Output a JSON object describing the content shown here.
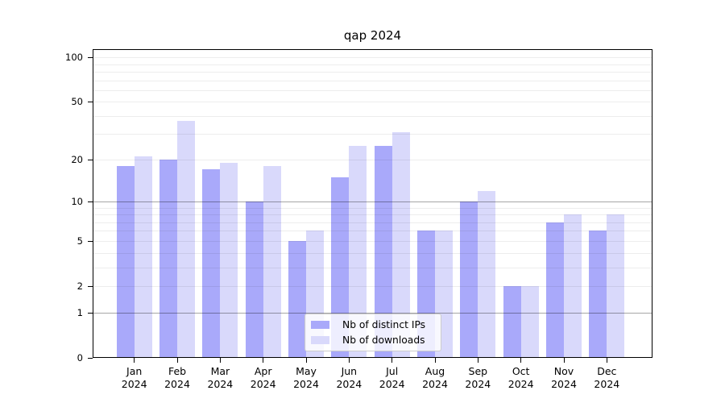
{
  "chart_data": {
    "type": "bar",
    "title": "qap 2024",
    "scale": "log1p",
    "categories": [
      "Jan",
      "Feb",
      "Mar",
      "Apr",
      "May",
      "Jun",
      "Jul",
      "Aug",
      "Sep",
      "Oct",
      "Nov",
      "Dec"
    ],
    "category_year": "2024",
    "series": [
      {
        "name": "Nb of distinct IPs",
        "color": "#a9a9fa",
        "values": [
          18,
          20,
          17,
          10,
          5,
          15,
          25,
          6,
          10,
          2,
          7,
          6
        ]
      },
      {
        "name": "Nb of downloads",
        "color": "#d9d9fb",
        "values": [
          21,
          37,
          19,
          18,
          6,
          25,
          31,
          6,
          12,
          2,
          8,
          8
        ]
      }
    ],
    "yticks": [
      0,
      1,
      2,
      5,
      10,
      20,
      50,
      100
    ],
    "grid_minor": [
      2,
      3,
      4,
      5,
      6,
      7,
      8,
      9,
      20,
      30,
      40,
      50,
      60,
      70,
      80,
      90,
      100
    ],
    "grid_major": [
      1,
      10
    ],
    "ylim": [
      0,
      114
    ],
    "xlabel": "",
    "ylabel": "",
    "legend_position": "lower center",
    "grid": "on"
  }
}
